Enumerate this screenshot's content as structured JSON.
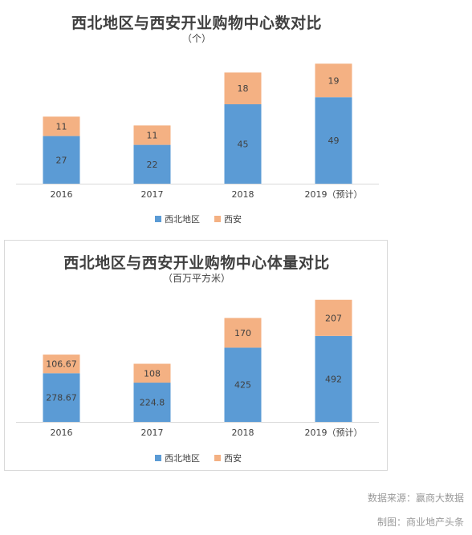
{
  "chart_data": [
    {
      "type": "bar",
      "stacked": true,
      "title": "西北地区与西安开业购物中心数对比",
      "subtitle": "（个）",
      "categories": [
        "2016",
        "2017",
        "2018",
        "2019（预计）"
      ],
      "series": [
        {
          "name": "西北地区",
          "color": "#5b9bd5",
          "values": [
            27,
            22,
            45,
            49
          ]
        },
        {
          "name": "西安",
          "color": "#f4b183",
          "values": [
            11,
            11,
            18,
            19
          ]
        }
      ],
      "ylim": [
        0,
        70
      ],
      "grid": false,
      "legend": "bottom"
    },
    {
      "type": "bar",
      "stacked": true,
      "title": "西北地区与西安开业购物中心体量对比",
      "subtitle": "（百万平方米）",
      "categories": [
        "2016",
        "2017",
        "2018",
        "2019（预计）"
      ],
      "series": [
        {
          "name": "西北地区",
          "color": "#5b9bd5",
          "values": [
            278.67,
            224.8,
            425,
            492
          ]
        },
        {
          "name": "西安",
          "color": "#f4b183",
          "values": [
            106.67,
            108,
            170,
            207
          ]
        }
      ],
      "ylim": [
        0,
        730
      ],
      "grid": false,
      "legend": "bottom"
    }
  ],
  "footer": {
    "source": "数据来源：赢商大数据",
    "credit": "制图：商业地产头条"
  }
}
